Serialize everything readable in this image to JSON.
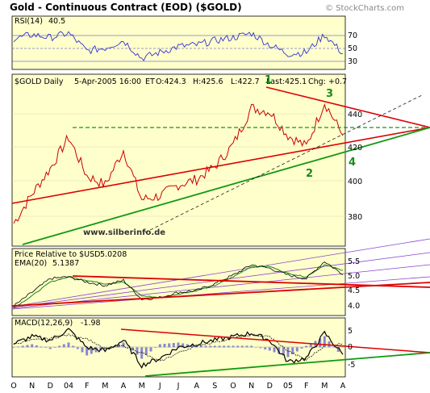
{
  "title": "Gold - Continuous Contract (EOD) ($GOLD)",
  "source": "© StockCharts.com",
  "watermark": "www.silberinfo.de",
  "colors": {
    "panel_bg": "#ffffcc",
    "price_line": "#cc0000",
    "red_trend": "#dd0000",
    "green_trend": "#119911",
    "purple_grid": "#8844cc",
    "rsi_line": "#3333cc",
    "ema_line": "#118811",
    "macd_line": "#000000",
    "hist": "#8888cc"
  },
  "rsi": {
    "label": "RSI(14)",
    "value": "40.5",
    "levels": [
      "70",
      "50",
      "30"
    ]
  },
  "price": {
    "label": "$GOLD Daily",
    "date": "5-Apr-2005 16:00",
    "tz": "ET",
    "open": "O:424.3",
    "high": "H:425.6",
    "low": "L:422.7",
    "last": "Last:425.1",
    "chg_label": "Chg:",
    "chg": "+0.7",
    "y_ticks": [
      "440",
      "420",
      "400",
      "380"
    ]
  },
  "relative": {
    "label": "Price Relative to $USD",
    "value": "5.0208",
    "ema_label": "EMA(20)",
    "ema_value": "5.1387",
    "y_ticks": [
      "5.5",
      "5.0",
      "4.5",
      "4.0"
    ]
  },
  "macd": {
    "label": "MACD(12,26,9)",
    "value": "-1.98",
    "y_ticks": [
      "5",
      "0",
      "-5"
    ]
  },
  "x_labels": [
    "O",
    "N",
    "D",
    "04",
    "F",
    "M",
    "A",
    "M",
    "J",
    "J",
    "A",
    "S",
    "O",
    "N",
    "D",
    "05",
    "F",
    "M",
    "A"
  ],
  "wave_labels": [
    "1",
    "2",
    "3",
    "4"
  ],
  "chart_data": {
    "type": "line",
    "title": "Gold - Continuous Contract (EOD) ($GOLD)",
    "x": [
      "Oct 03",
      "Nov 03",
      "Dec 03",
      "Jan 04",
      "Feb 04",
      "Mar 04",
      "Apr 04",
      "May 04",
      "Jun 04",
      "Jul 04",
      "Aug 04",
      "Sep 04",
      "Oct 04",
      "Nov 04",
      "Dec 04",
      "Jan 05",
      "Feb 05",
      "Mar 05",
      "Apr 05"
    ],
    "series": [
      {
        "name": "$GOLD Daily",
        "values": [
          377,
          393,
          407,
          424,
          403,
          398,
          417,
          390,
          392,
          398,
          401,
          408,
          420,
          440,
          438,
          425,
          419,
          443,
          425
        ]
      },
      {
        "name": "Price Relative to $USD",
        "values": [
          4.1,
          4.5,
          4.9,
          4.95,
          4.8,
          4.7,
          4.85,
          4.3,
          4.35,
          4.5,
          4.55,
          4.75,
          5.0,
          5.3,
          5.2,
          5.0,
          4.9,
          5.4,
          5.02
        ]
      },
      {
        "name": "EMA(20)",
        "values": [
          4.05,
          4.4,
          4.8,
          4.95,
          4.85,
          4.75,
          4.8,
          4.4,
          4.35,
          4.45,
          4.55,
          4.7,
          4.95,
          5.25,
          5.25,
          5.05,
          4.95,
          5.3,
          5.14
        ]
      },
      {
        "name": "RSI(14)",
        "values": [
          60,
          66,
          62,
          68,
          44,
          48,
          58,
          34,
          42,
          50,
          52,
          58,
          62,
          68,
          52,
          40,
          42,
          66,
          40.5
        ]
      },
      {
        "name": "MACD(12,26,9)",
        "values": [
          1,
          3,
          2,
          5,
          0,
          -1,
          2,
          -5,
          -3,
          0,
          1,
          2,
          3,
          4,
          2,
          -4,
          -3,
          4,
          -1.98
        ]
      }
    ],
    "ylim": [
      365,
      458
    ],
    "grid": true
  }
}
